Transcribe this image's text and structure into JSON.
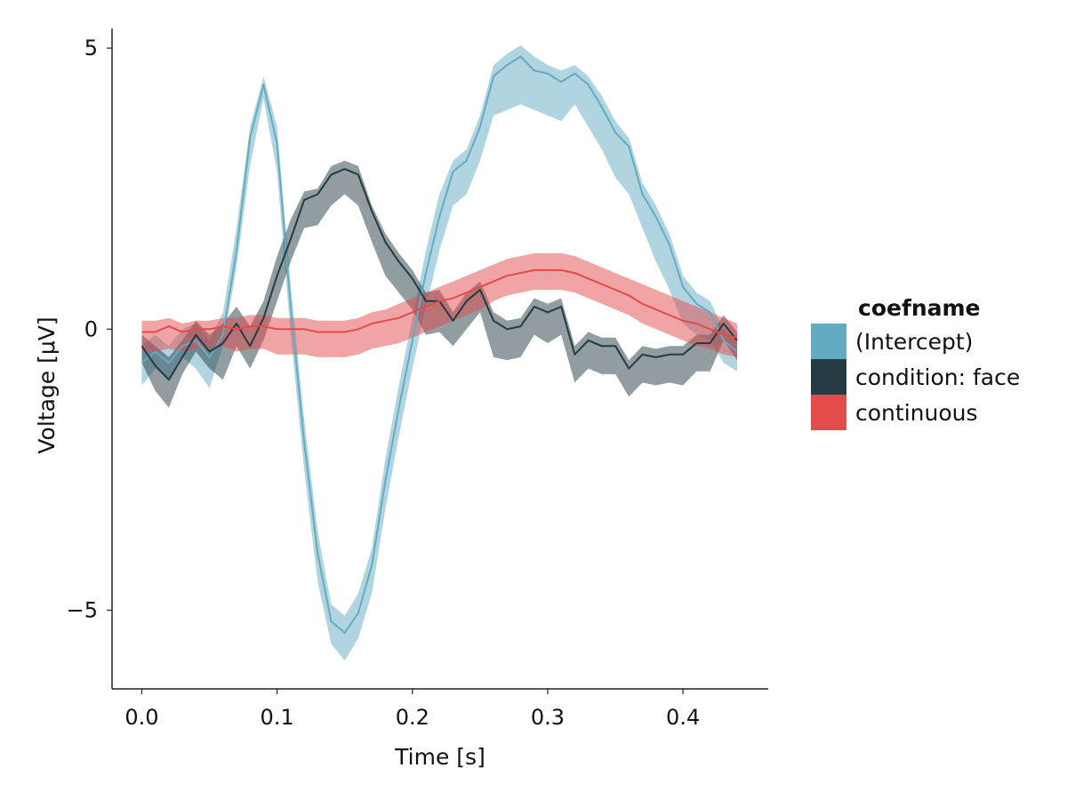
{
  "chart_data": {
    "type": "line",
    "xlabel": "Time [s]",
    "ylabel": "Voltage [μV]",
    "xlim": [
      -0.022,
      0.463
    ],
    "ylim": [
      -6.4,
      5.35
    ],
    "xticks": [
      0.0,
      0.1,
      0.2,
      0.3,
      0.4
    ],
    "xtick_labels": [
      "0.0",
      "0.1",
      "0.2",
      "0.3",
      "0.4"
    ],
    "yticks": [
      5,
      0,
      -5
    ],
    "ytick_labels": [
      "5",
      "0",
      "−5"
    ],
    "grid": false,
    "legend_position": "right",
    "legend_title": "coefname",
    "x": [
      0.0,
      0.01,
      0.02,
      0.03,
      0.04,
      0.05,
      0.06,
      0.07,
      0.08,
      0.09,
      0.1,
      0.11,
      0.12,
      0.13,
      0.14,
      0.15,
      0.16,
      0.17,
      0.18,
      0.19,
      0.2,
      0.21,
      0.22,
      0.23,
      0.24,
      0.25,
      0.26,
      0.27,
      0.28,
      0.29,
      0.3,
      0.31,
      0.32,
      0.33,
      0.34,
      0.35,
      0.36,
      0.37,
      0.38,
      0.39,
      0.4,
      0.41,
      0.42,
      0.43,
      0.44
    ],
    "series": [
      {
        "name": "(Intercept)",
        "color": "#63abc2",
        "values": [
          -0.6,
          -0.4,
          -0.6,
          -0.3,
          -0.2,
          -0.5,
          -0.1,
          1.4,
          3.4,
          4.35,
          3.3,
          0.4,
          -2.0,
          -4.0,
          -5.2,
          -5.4,
          -5.05,
          -4.2,
          -2.7,
          -1.4,
          -0.2,
          1.0,
          2.0,
          2.8,
          3.0,
          3.6,
          4.5,
          4.7,
          4.85,
          4.6,
          4.55,
          4.4,
          4.55,
          4.35,
          3.95,
          3.5,
          3.25,
          2.4,
          2.0,
          1.5,
          0.75,
          0.45,
          0.3,
          -0.2,
          -0.4
        ],
        "ci_low": [
          -1.0,
          -0.7,
          -0.9,
          -0.5,
          -0.7,
          -1.05,
          -0.3,
          1.1,
          2.9,
          4.1,
          2.8,
          -0.1,
          -2.5,
          -4.5,
          -5.6,
          -5.9,
          -5.5,
          -4.7,
          -3.2,
          -1.9,
          -0.7,
          0.4,
          1.4,
          2.2,
          2.4,
          3.0,
          3.8,
          3.9,
          4.0,
          3.9,
          3.8,
          3.7,
          4.0,
          3.6,
          3.2,
          2.7,
          2.4,
          1.8,
          1.2,
          0.7,
          0.1,
          -0.1,
          -0.2,
          -0.6,
          -0.75
        ],
        "ci_high": [
          -0.3,
          -0.1,
          -0.3,
          0.0,
          0.1,
          -0.2,
          0.3,
          1.8,
          3.6,
          4.5,
          3.6,
          0.8,
          -1.6,
          -3.6,
          -4.9,
          -5.1,
          -4.7,
          -3.9,
          -2.3,
          -1.0,
          0.2,
          1.4,
          2.4,
          3.0,
          3.2,
          3.8,
          4.7,
          4.9,
          5.05,
          4.85,
          4.7,
          4.6,
          4.7,
          4.5,
          4.15,
          3.7,
          3.4,
          2.6,
          2.2,
          1.7,
          0.95,
          0.65,
          0.5,
          0.0,
          -0.2
        ]
      },
      {
        "name": "condition: face",
        "color": "#243b44",
        "values": [
          -0.3,
          -0.65,
          -0.9,
          -0.5,
          -0.1,
          -0.4,
          -0.25,
          0.1,
          -0.3,
          0.2,
          0.95,
          1.6,
          2.3,
          2.4,
          2.75,
          2.85,
          2.75,
          2.1,
          1.55,
          1.2,
          0.9,
          0.5,
          0.5,
          0.15,
          0.5,
          0.7,
          0.15,
          0.0,
          0.05,
          0.4,
          0.3,
          0.4,
          -0.45,
          -0.2,
          -0.3,
          -0.3,
          -0.7,
          -0.45,
          -0.5,
          -0.45,
          -0.45,
          -0.25,
          -0.25,
          0.1,
          -0.2
        ],
        "ci_low": [
          -0.6,
          -1.1,
          -1.4,
          -0.8,
          -0.4,
          -0.7,
          -0.9,
          -0.3,
          -0.7,
          -0.2,
          0.5,
          1.2,
          1.8,
          1.85,
          2.2,
          2.4,
          2.2,
          1.55,
          0.95,
          0.65,
          0.35,
          -0.1,
          -0.05,
          -0.3,
          0.0,
          0.3,
          -0.5,
          -0.55,
          -0.5,
          -0.1,
          -0.25,
          -0.1,
          -0.95,
          -0.7,
          -0.8,
          -0.8,
          -1.2,
          -0.95,
          -1.0,
          -0.95,
          -1.0,
          -0.75,
          -0.75,
          -0.2,
          -0.55
        ],
        "ci_high": [
          -0.1,
          -0.3,
          -0.5,
          -0.2,
          0.15,
          -0.1,
          0.1,
          0.4,
          0.05,
          0.5,
          1.3,
          1.95,
          2.45,
          2.5,
          2.9,
          3.0,
          2.9,
          2.2,
          1.7,
          1.35,
          1.05,
          0.65,
          0.7,
          0.3,
          0.65,
          0.85,
          0.3,
          0.15,
          0.2,
          0.55,
          0.45,
          0.55,
          -0.3,
          -0.05,
          -0.15,
          -0.15,
          -0.55,
          -0.3,
          -0.35,
          -0.3,
          -0.3,
          -0.1,
          -0.1,
          0.25,
          -0.05
        ]
      },
      {
        "name": "continuous",
        "color": "#e34a4a",
        "values": [
          -0.05,
          -0.05,
          0.05,
          -0.05,
          0.0,
          0.0,
          0.05,
          0.0,
          0.05,
          0.05,
          0.0,
          0.0,
          0.0,
          -0.05,
          -0.05,
          -0.05,
          0.0,
          0.1,
          0.15,
          0.2,
          0.3,
          0.4,
          0.5,
          0.55,
          0.65,
          0.75,
          0.85,
          0.95,
          1.0,
          1.05,
          1.05,
          1.05,
          1.0,
          0.9,
          0.8,
          0.7,
          0.6,
          0.45,
          0.35,
          0.25,
          0.15,
          0.1,
          0.0,
          -0.1,
          -0.15
        ],
        "ci_low": [
          -0.4,
          -0.4,
          -0.35,
          -0.4,
          -0.35,
          -0.35,
          -0.3,
          -0.4,
          -0.35,
          -0.35,
          -0.45,
          -0.45,
          -0.45,
          -0.5,
          -0.5,
          -0.5,
          -0.45,
          -0.35,
          -0.3,
          -0.25,
          -0.15,
          -0.05,
          0.05,
          0.15,
          0.25,
          0.35,
          0.5,
          0.6,
          0.65,
          0.7,
          0.7,
          0.7,
          0.65,
          0.55,
          0.45,
          0.35,
          0.25,
          0.1,
          0.0,
          -0.1,
          -0.2,
          -0.3,
          -0.35,
          -0.45,
          -0.5
        ],
        "ci_high": [
          0.15,
          0.15,
          0.2,
          0.1,
          0.15,
          0.15,
          0.2,
          0.2,
          0.25,
          0.25,
          0.2,
          0.2,
          0.2,
          0.15,
          0.15,
          0.15,
          0.2,
          0.3,
          0.35,
          0.45,
          0.55,
          0.65,
          0.75,
          0.85,
          0.95,
          1.05,
          1.15,
          1.25,
          1.3,
          1.35,
          1.35,
          1.35,
          1.3,
          1.2,
          1.1,
          1.0,
          0.9,
          0.8,
          0.7,
          0.6,
          0.5,
          0.4,
          0.3,
          0.2,
          0.1
        ]
      }
    ]
  }
}
